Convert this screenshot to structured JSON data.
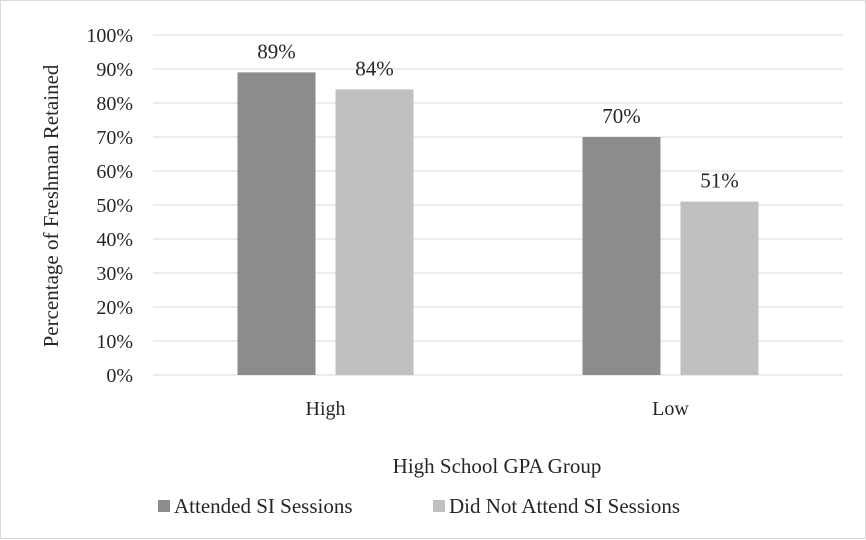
{
  "chart_data": {
    "type": "bar",
    "categories": [
      "High",
      "Low"
    ],
    "series": [
      {
        "name": "Attended SI Sessions",
        "values": [
          89,
          70
        ],
        "labels": [
          "89%",
          "70%"
        ],
        "color": "#8c8c8c"
      },
      {
        "name": "Did Not Attend SI Sessions",
        "values": [
          84,
          51
        ],
        "labels": [
          "84%",
          "51%"
        ],
        "color": "#c0c0c0"
      }
    ],
    "xlabel": "High School GPA Group",
    "ylabel": "Percentage of Freshman Retained",
    "ylim": [
      0,
      100
    ],
    "yticks": [
      "0%",
      "10%",
      "20%",
      "30%",
      "40%",
      "50%",
      "60%",
      "70%",
      "80%",
      "90%",
      "100%"
    ],
    "grid": true,
    "legend_position": "bottom",
    "gridline_color": "#d9d9d9"
  }
}
